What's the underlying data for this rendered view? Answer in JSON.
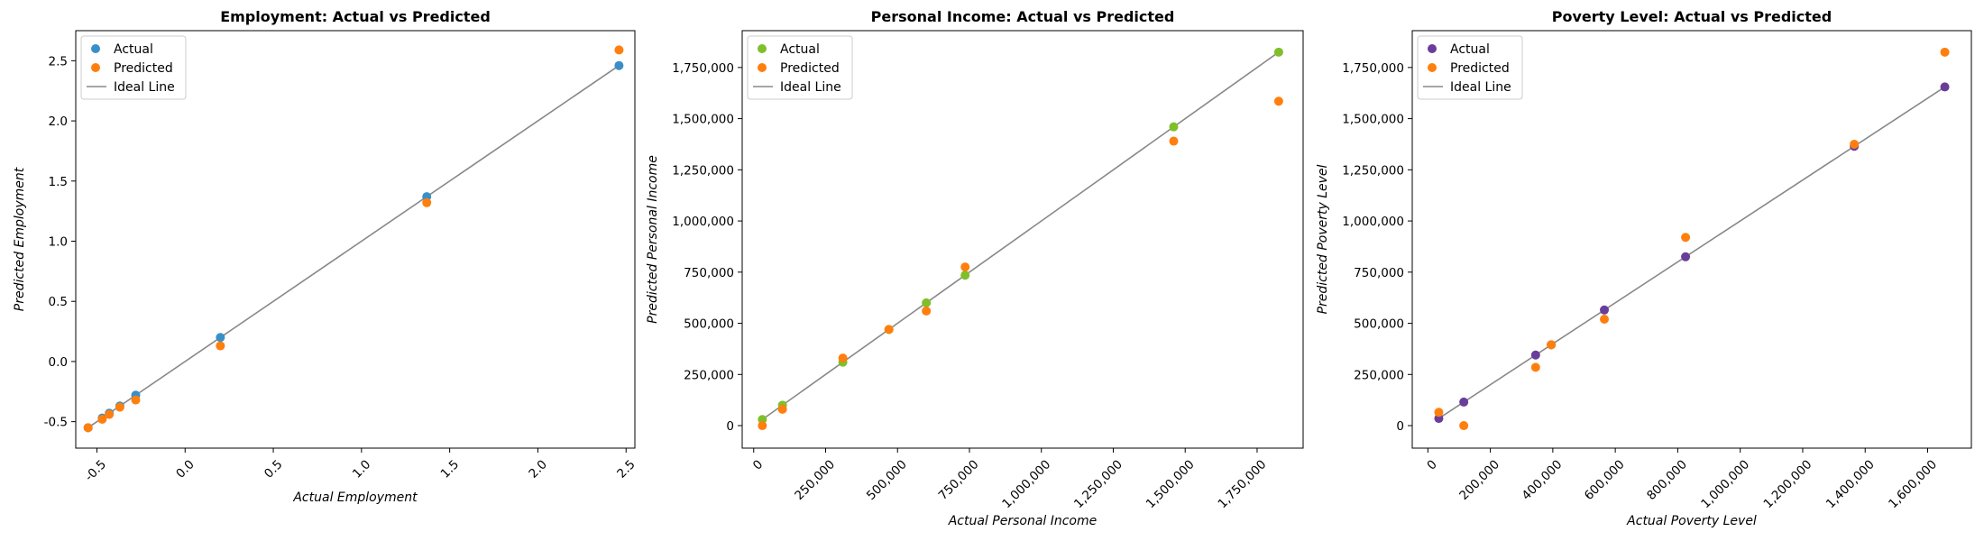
{
  "chart_data": [
    {
      "type": "scatter",
      "title": "Employment: Actual vs Predicted",
      "xlabel": "Actual Employment",
      "ylabel": "Predicted Employment",
      "xlim": [
        -0.62,
        2.55
      ],
      "ylim": [
        -0.72,
        2.75
      ],
      "xticks": [
        -0.5,
        0.0,
        0.5,
        1.0,
        1.5,
        2.0,
        2.5
      ],
      "yticks": [
        -0.5,
        0.0,
        0.5,
        1.0,
        1.5,
        2.0,
        2.5
      ],
      "xtick_labels": [
        "-0.5",
        "0.0",
        "0.5",
        "1.0",
        "1.5",
        "2.0",
        "2.5"
      ],
      "ytick_labels": [
        "-0.5",
        "0.0",
        "0.5",
        "1.0",
        "1.5",
        "2.0",
        "2.5"
      ],
      "x_rotated": true,
      "actual_color": "#3a8fc8",
      "predicted_color": "#ff7f0e",
      "line_color": "#888888",
      "legend": {
        "actual": "Actual",
        "predicted": "Predicted",
        "line": "Ideal Line",
        "position": "upper left"
      },
      "ideal_line": [
        -0.55,
        2.46
      ],
      "x": [
        -0.55,
        -0.47,
        -0.43,
        -0.37,
        -0.28,
        0.2,
        1.37,
        2.46
      ],
      "predicted": [
        -0.55,
        -0.48,
        -0.44,
        -0.38,
        -0.32,
        0.13,
        1.32,
        2.59
      ]
    },
    {
      "type": "scatter",
      "title": "Personal Income: Actual vs Predicted",
      "xlabel": "Actual Personal Income",
      "ylabel": "Predicted Personal Income",
      "xlim": [
        -40000,
        1910000
      ],
      "ylim": [
        -110000,
        1930000
      ],
      "xticks": [
        0,
        250000,
        500000,
        750000,
        1000000,
        1250000,
        1500000,
        1750000
      ],
      "yticks": [
        0,
        250000,
        500000,
        750000,
        1000000,
        1250000,
        1500000,
        1750000
      ],
      "xtick_labels": [
        "0",
        "250,000",
        "500,000",
        "750,000",
        "1,000,000",
        "1,250,000",
        "1,500,000",
        "1,750,000"
      ],
      "ytick_labels": [
        "0",
        "250,000",
        "500,000",
        "750,000",
        "1,000,000",
        "1,250,000",
        "1,500,000",
        "1,750,000"
      ],
      "x_rotated": true,
      "actual_color": "#7fbf2a",
      "predicted_color": "#ff7f0e",
      "line_color": "#888888",
      "legend": {
        "actual": "Actual",
        "predicted": "Predicted",
        "line": "Ideal Line",
        "position": "upper left"
      },
      "ideal_line": [
        30000,
        1825000
      ],
      "x": [
        30000,
        100000,
        310000,
        470000,
        600000,
        735000,
        1460000,
        1825000
      ],
      "predicted": [
        0,
        80000,
        330000,
        470000,
        560000,
        775000,
        1390000,
        1585000
      ]
    },
    {
      "type": "scatter",
      "title": "Poverty Level: Actual vs Predicted",
      "xlabel": "Actual Poverty Level",
      "ylabel": "Predicted Poverty Level",
      "xlim": [
        -50000,
        1740000
      ],
      "ylim": [
        -110000,
        1930000
      ],
      "xticks": [
        0,
        200000,
        400000,
        600000,
        800000,
        1000000,
        1200000,
        1400000,
        1600000
      ],
      "yticks": [
        0,
        250000,
        500000,
        750000,
        1000000,
        1250000,
        1500000,
        1750000
      ],
      "xtick_labels": [
        "0",
        "200,000",
        "400,000",
        "600,000",
        "800,000",
        "1,000,000",
        "1,200,000",
        "1,400,000",
        "1,600,000"
      ],
      "ytick_labels": [
        "0",
        "250,000",
        "500,000",
        "750,000",
        "1,000,000",
        "1,250,000",
        "1,500,000",
        "1,750,000"
      ],
      "x_rotated": true,
      "actual_color": "#6a3d9a",
      "predicted_color": "#ff7f0e",
      "line_color": "#888888",
      "legend": {
        "actual": "Actual",
        "predicted": "Predicted",
        "line": "Ideal Line",
        "position": "upper left"
      },
      "ideal_line": [
        35000,
        1655000
      ],
      "x": [
        35000,
        115000,
        345000,
        395000,
        565000,
        825000,
        1365000,
        1655000
      ],
      "predicted": [
        65000,
        0,
        285000,
        395000,
        520000,
        920000,
        1375000,
        1825000
      ]
    }
  ]
}
